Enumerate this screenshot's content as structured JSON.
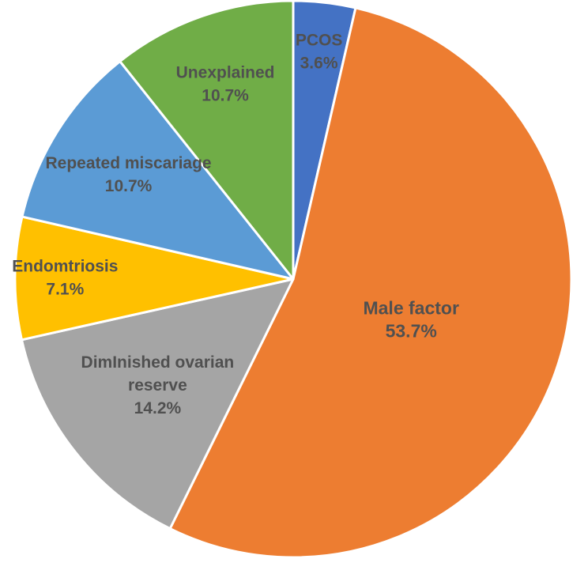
{
  "chart_data": {
    "type": "pie",
    "title": "",
    "slices": [
      {
        "label": "PCOS",
        "value": 3.6,
        "value_label": "3.6%",
        "color": "#4472C4"
      },
      {
        "label": "Male factor",
        "value": 53.7,
        "value_label": "53.7%",
        "color": "#ED7D31"
      },
      {
        "label": "DimInished ovarian reserve",
        "value": 14.2,
        "value_label": "14.2%",
        "color": "#A5A5A5"
      },
      {
        "label": "Endomtriosis",
        "value": 7.1,
        "value_label": "7.1%",
        "color": "#FFC000"
      },
      {
        "label": "Repeated miscariage",
        "value": 10.7,
        "value_label": "10.7%",
        "color": "#5B9BD5"
      },
      {
        "label": "Unexplained",
        "value": 10.7,
        "value_label": "10.7%",
        "color": "#70AD47"
      }
    ],
    "start_angle": "12 o'clock",
    "direction": "clockwise",
    "legend": "none",
    "data_labels": "category name and percentage inside slices",
    "border_color": "#FFFFFF"
  }
}
